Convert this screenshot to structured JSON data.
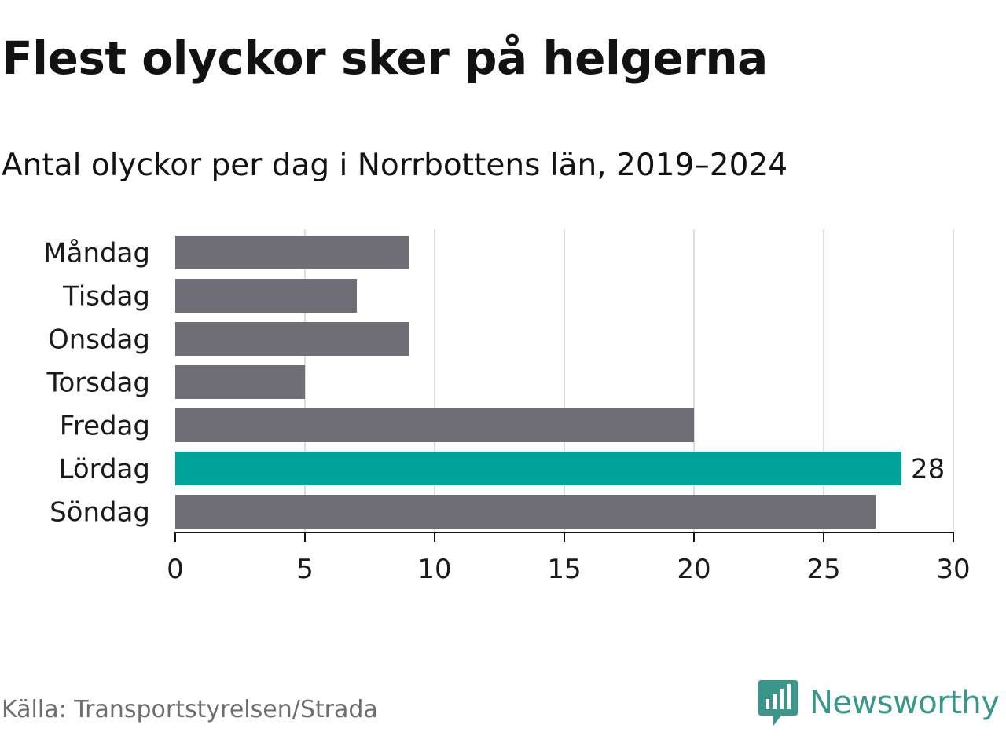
{
  "title": "Flest olyckor sker på helgerna",
  "subtitle": "Antal olyckor per dag i Norrbottens län, 2019–2024",
  "source": "Källa: Transportstyrelsen/Strada",
  "brand": {
    "name": "Newsworthy",
    "icon": "newsworthy-logo-icon",
    "color": "#3a968a"
  },
  "chart_data": {
    "type": "bar",
    "orientation": "horizontal",
    "categories": [
      "Måndag",
      "Tisdag",
      "Onsdag",
      "Torsdag",
      "Fredag",
      "Lördag",
      "Söndag"
    ],
    "values": [
      9,
      7,
      9,
      5,
      20,
      28,
      27
    ],
    "highlight_index": 5,
    "highlight_label": "28",
    "xlim": [
      0,
      30
    ],
    "xticks": [
      0,
      5,
      10,
      15,
      20,
      25,
      30
    ],
    "grid": true,
    "colors": {
      "bar": "#6f6e76",
      "highlight": "#00a398",
      "grid": "#dddddd",
      "axis": "#111111"
    }
  }
}
